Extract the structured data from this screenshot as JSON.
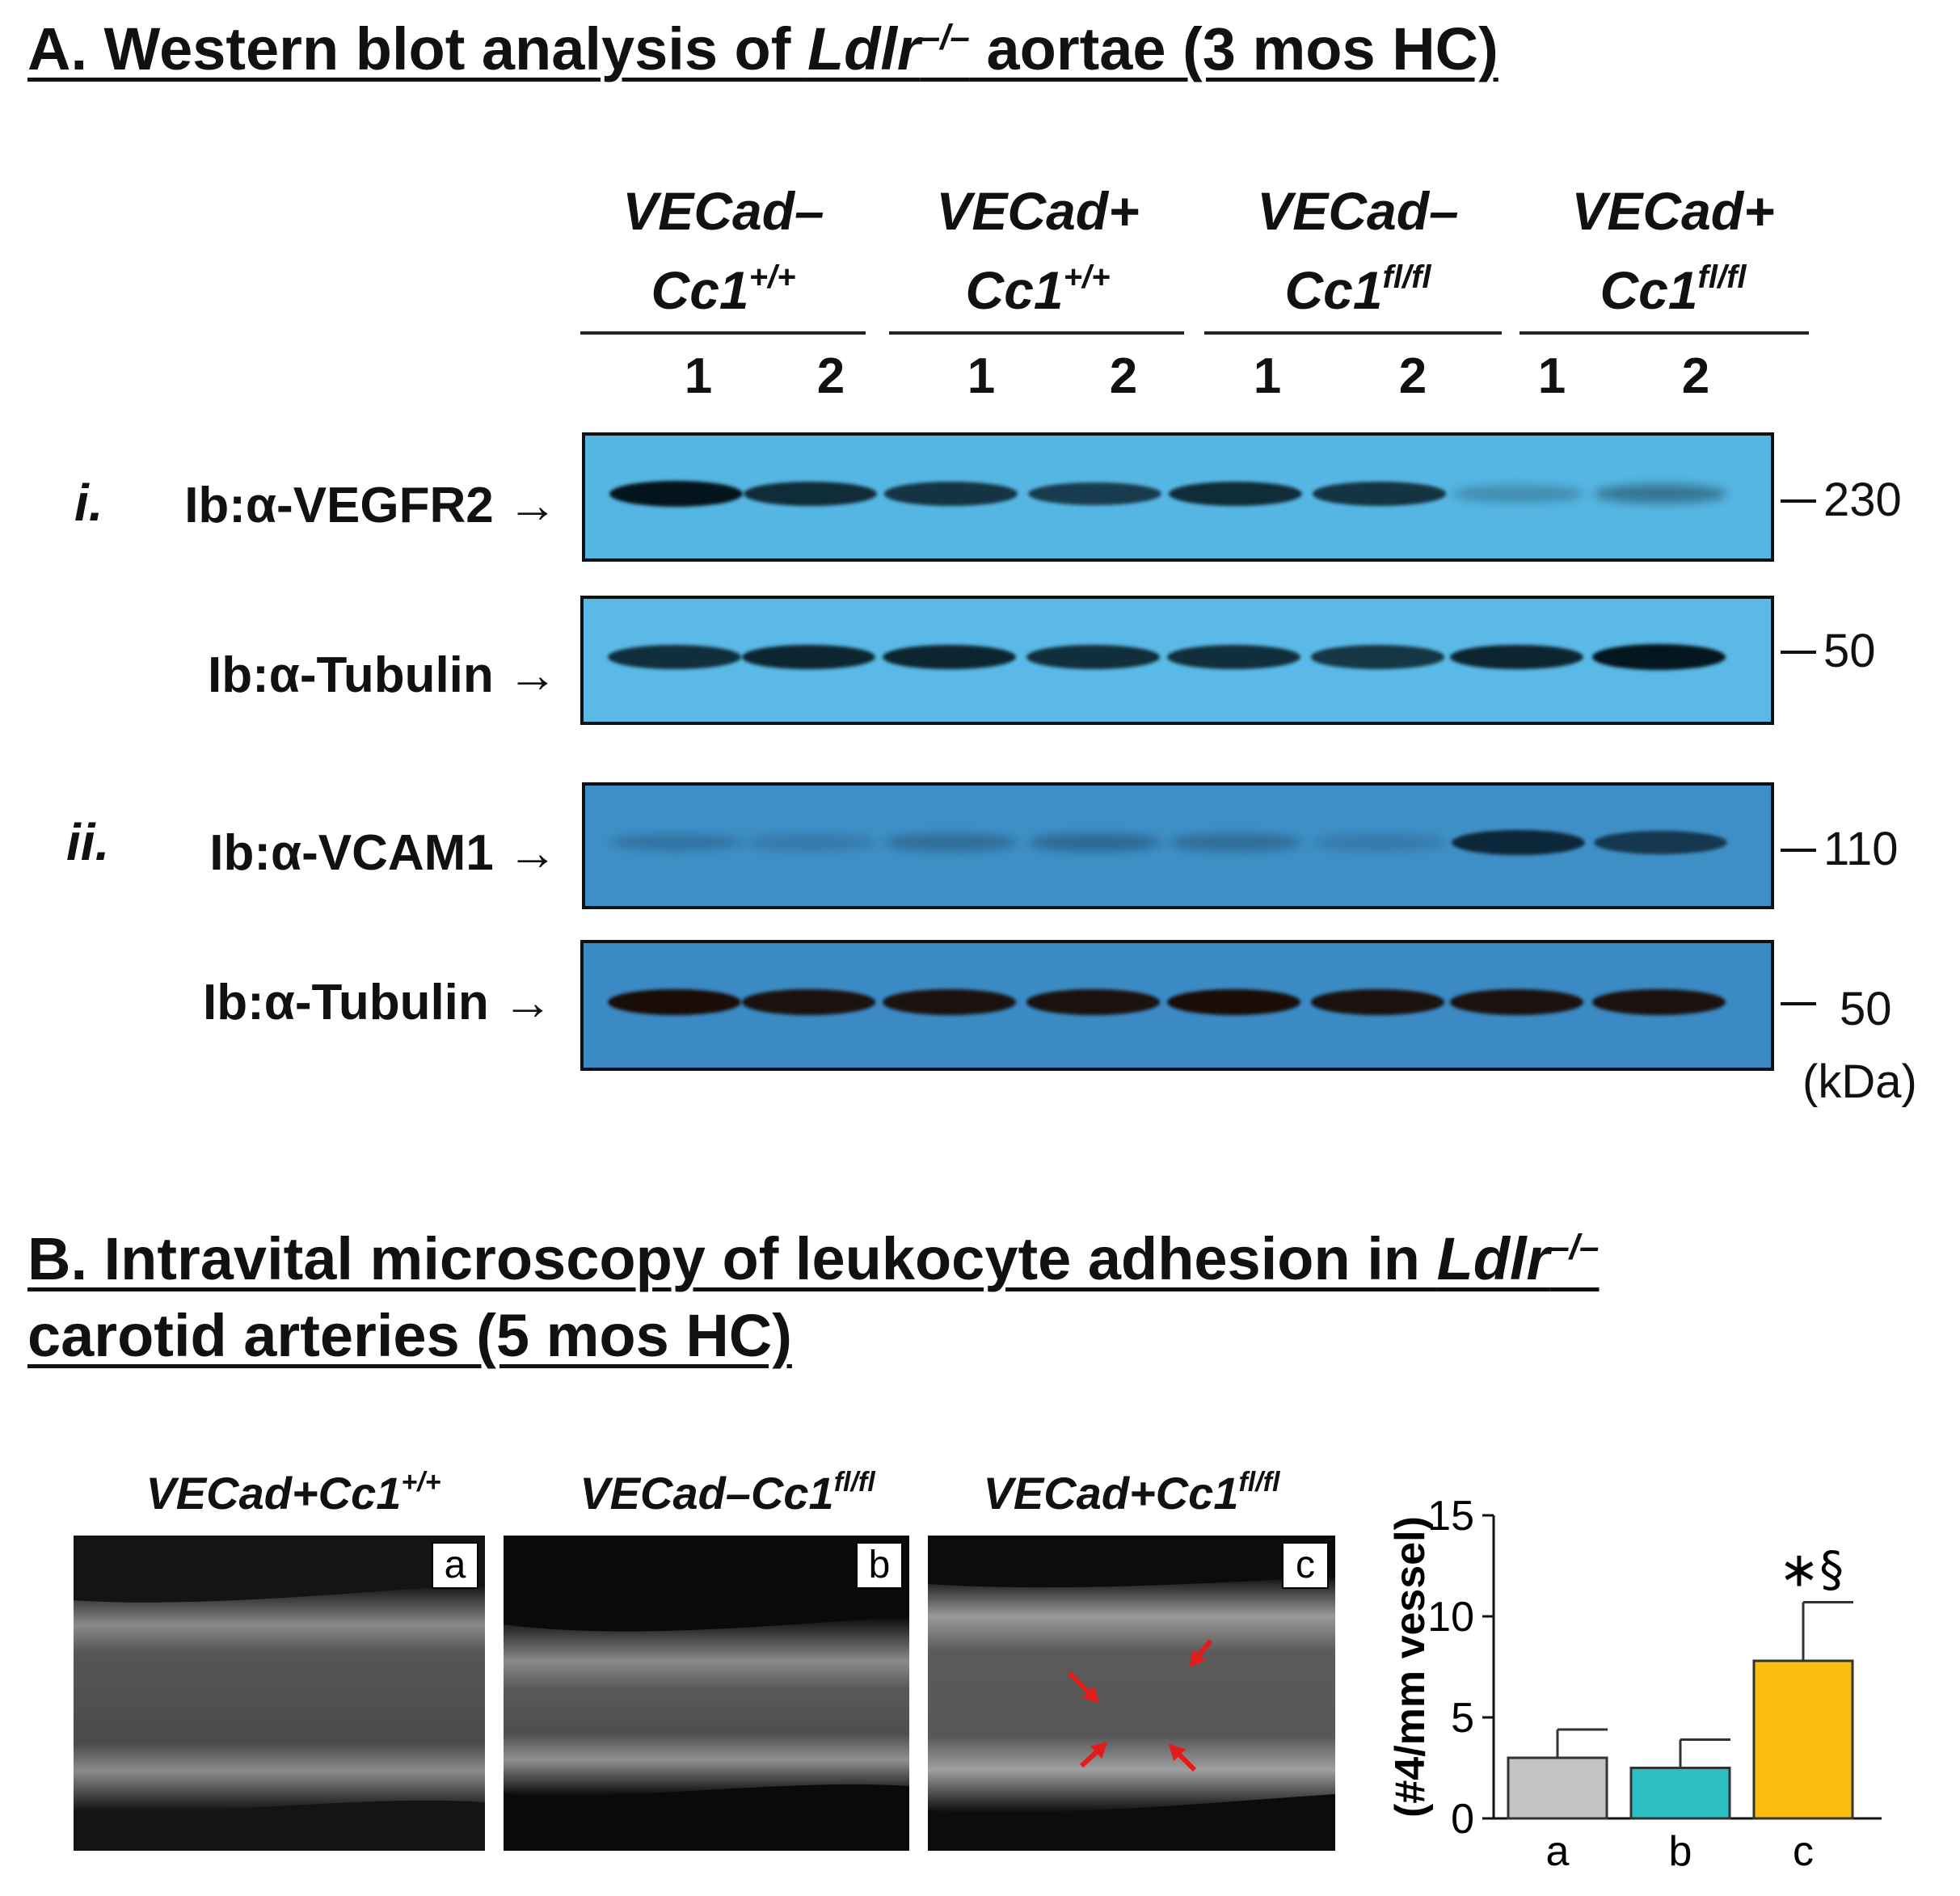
{
  "panel_a": {
    "title_prefix": "A. Western blot analysis of ",
    "title_gene": "Ldlr",
    "title_gene_sup": "–/–",
    "title_suffix": " aortae (3 mos HC)",
    "groups": [
      {
        "line1": "VECad–",
        "line2_base": "Cc1",
        "line2_sup": "+/+"
      },
      {
        "line1": "VECad+",
        "line2_base": "Cc1",
        "line2_sup": "+/+"
      },
      {
        "line1": "VECad–",
        "line2_base": "Cc1",
        "line2_sup": "fl/fl"
      },
      {
        "line1": "VECad+",
        "line2_base": "Cc1",
        "line2_sup": "fl/fl"
      }
    ],
    "lanes": [
      "1",
      "2",
      "1",
      "2",
      "1",
      "2",
      "1",
      "2"
    ],
    "section_i": "i.",
    "section_ii": "ii.",
    "blots": [
      {
        "label": "Ib:α-VEGFR2",
        "arrow": "→",
        "mw": "230",
        "bg": "#56b6e3",
        "band_color": "#04141c",
        "band_intensity": [
          1.0,
          0.85,
          0.8,
          0.75,
          0.85,
          0.8,
          0.25,
          0.4
        ]
      },
      {
        "label": "Ib:α-Tubulin",
        "arrow": "→",
        "mw": "50",
        "bg": "#5ab9e6",
        "band_color": "#04161e",
        "band_intensity": [
          0.85,
          0.9,
          0.9,
          0.85,
          0.85,
          0.8,
          0.9,
          1.0
        ]
      },
      {
        "label": "Ib:α-VCAM1",
        "arrow": "→",
        "mw": "110",
        "bg": "#3f8fc7",
        "band_color": "#0b2233",
        "band_intensity": [
          0.25,
          0.2,
          0.3,
          0.35,
          0.3,
          0.2,
          0.95,
          0.8
        ]
      },
      {
        "label": "Ib:α-Tubulin",
        "arrow": "→",
        "mw": "50",
        "bg": "#3b8ac4",
        "band_color": "#1a0c06",
        "band_intensity": [
          1.0,
          0.95,
          0.95,
          0.95,
          1.0,
          0.95,
          0.95,
          0.95
        ]
      }
    ],
    "mw_unit": "(kDa)"
  },
  "panel_b": {
    "title_line1_prefix": "B. Intravital microscopy of leukocyte adhesion in ",
    "title_gene": "Ldlr",
    "title_gene_sup": "–/–",
    "title_line2": "carotid arteries (5 mos HC)",
    "images": [
      {
        "title_base": "VECad+Cc1",
        "title_sup": "+/+",
        "letter": "a"
      },
      {
        "title_base": "VECad–Cc1",
        "title_sup": "fl/fl",
        "letter": "b"
      },
      {
        "title_base": "VECad+Cc1",
        "title_sup": "fl/fl",
        "letter": "c"
      }
    ],
    "arrow_color": "#e51b1b"
  },
  "chart_data": {
    "type": "bar",
    "categories": [
      "a",
      "b",
      "c"
    ],
    "values": [
      3.0,
      2.5,
      7.8
    ],
    "errors": [
      1.4,
      1.4,
      2.9
    ],
    "colors": [
      "#c3c3c3",
      "#2bbfc4",
      "#fbbd10"
    ],
    "ylabel": "(#4/mm vessel)",
    "ylim": [
      0,
      15
    ],
    "yticks": [
      "0",
      "5",
      "10",
      "15"
    ],
    "significance": {
      "category": "c",
      "label": "∗§"
    }
  }
}
